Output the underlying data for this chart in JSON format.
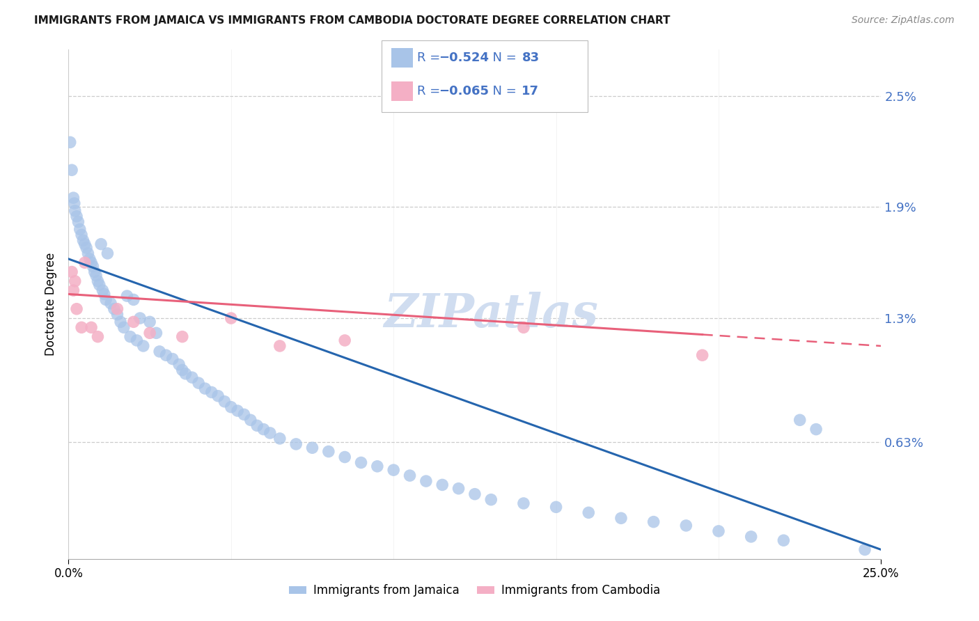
{
  "title": "IMMIGRANTS FROM JAMAICA VS IMMIGRANTS FROM CAMBODIA DOCTORATE DEGREE CORRELATION CHART",
  "source": "Source: ZipAtlas.com",
  "ylabel": "Doctorate Degree",
  "xlim": [
    0.0,
    25.0
  ],
  "ylim": [
    0.0,
    2.75
  ],
  "yticks": [
    0.63,
    1.3,
    1.9,
    2.5
  ],
  "ytick_labels": [
    "0.63%",
    "1.3%",
    "1.9%",
    "2.5%"
  ],
  "color_jamaica": "#a8c4e8",
  "color_cambodia": "#f4afc5",
  "color_line_jamaica": "#2565ae",
  "color_line_cambodia": "#e8607a",
  "background_color": "#ffffff",
  "watermark": "ZIPatlas",
  "jamaica_x": [
    0.05,
    0.1,
    0.15,
    0.18,
    0.2,
    0.25,
    0.3,
    0.35,
    0.4,
    0.45,
    0.5,
    0.55,
    0.6,
    0.65,
    0.7,
    0.75,
    0.8,
    0.85,
    0.9,
    0.95,
    1.0,
    1.05,
    1.1,
    1.15,
    1.2,
    1.3,
    1.4,
    1.5,
    1.6,
    1.7,
    1.8,
    1.9,
    2.0,
    2.1,
    2.2,
    2.3,
    2.5,
    2.7,
    2.8,
    3.0,
    3.2,
    3.4,
    3.5,
    3.6,
    3.8,
    4.0,
    4.2,
    4.4,
    4.6,
    4.8,
    5.0,
    5.2,
    5.4,
    5.6,
    5.8,
    6.0,
    6.2,
    6.5,
    7.0,
    7.5,
    8.0,
    8.5,
    9.0,
    9.5,
    10.0,
    10.5,
    11.0,
    11.5,
    12.0,
    12.5,
    13.0,
    14.0,
    15.0,
    16.0,
    17.0,
    18.0,
    19.0,
    20.0,
    21.0,
    22.0,
    22.5,
    23.0,
    24.5
  ],
  "jamaica_y": [
    2.25,
    2.1,
    1.95,
    1.92,
    1.88,
    1.85,
    1.82,
    1.78,
    1.75,
    1.72,
    1.7,
    1.68,
    1.65,
    1.62,
    1.6,
    1.58,
    1.55,
    1.53,
    1.5,
    1.48,
    1.7,
    1.45,
    1.43,
    1.4,
    1.65,
    1.38,
    1.35,
    1.32,
    1.28,
    1.25,
    1.42,
    1.2,
    1.4,
    1.18,
    1.3,
    1.15,
    1.28,
    1.22,
    1.12,
    1.1,
    1.08,
    1.05,
    1.02,
    1.0,
    0.98,
    0.95,
    0.92,
    0.9,
    0.88,
    0.85,
    0.82,
    0.8,
    0.78,
    0.75,
    0.72,
    0.7,
    0.68,
    0.65,
    0.62,
    0.6,
    0.58,
    0.55,
    0.52,
    0.5,
    0.48,
    0.45,
    0.42,
    0.4,
    0.38,
    0.35,
    0.32,
    0.3,
    0.28,
    0.25,
    0.22,
    0.2,
    0.18,
    0.15,
    0.12,
    0.1,
    0.75,
    0.7,
    0.05
  ],
  "cambodia_x": [
    0.1,
    0.15,
    0.2,
    0.25,
    0.4,
    0.5,
    0.7,
    0.9,
    1.5,
    2.0,
    2.5,
    3.5,
    5.0,
    6.5,
    8.5,
    14.0,
    19.5
  ],
  "cambodia_y": [
    1.55,
    1.45,
    1.5,
    1.35,
    1.25,
    1.6,
    1.25,
    1.2,
    1.35,
    1.28,
    1.22,
    1.2,
    1.3,
    1.15,
    1.18,
    1.25,
    1.1
  ],
  "line_jamaica_x0": 0.0,
  "line_jamaica_y0": 1.62,
  "line_jamaica_x1": 25.0,
  "line_jamaica_y1": 0.05,
  "line_cambodia_x0": 0.0,
  "line_cambodia_y0": 1.43,
  "line_cambodia_x1": 25.0,
  "line_cambodia_y1": 1.15,
  "line_cambodia_solid_end": 19.5
}
